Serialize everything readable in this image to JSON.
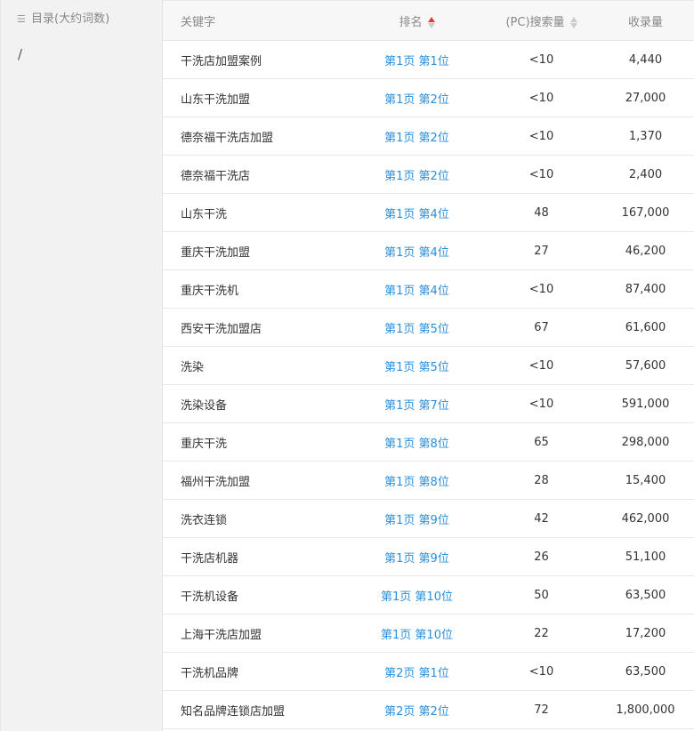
{
  "sidebar": {
    "title": "目录(大约词数)",
    "items": [
      "/"
    ]
  },
  "header": {
    "keyword": "关键字",
    "rank": "排名",
    "search": "(PC)搜索量",
    "indexed": "收录量"
  },
  "colors": {
    "rank_link": "#2a8fdc",
    "sort_active": "#e8352e"
  },
  "rows": [
    {
      "k": "干洗店加盟案例",
      "r": "第1页 第1位",
      "s": "<10",
      "i": "4,440"
    },
    {
      "k": "山东干洗加盟",
      "r": "第1页 第2位",
      "s": "<10",
      "i": "27,000"
    },
    {
      "k": "德奈福干洗店加盟",
      "r": "第1页 第2位",
      "s": "<10",
      "i": "1,370"
    },
    {
      "k": "德奈福干洗店",
      "r": "第1页 第2位",
      "s": "<10",
      "i": "2,400"
    },
    {
      "k": "山东干洗",
      "r": "第1页 第4位",
      "s": "48",
      "i": "167,000"
    },
    {
      "k": "重庆干洗加盟",
      "r": "第1页 第4位",
      "s": "27",
      "i": "46,200"
    },
    {
      "k": "重庆干洗机",
      "r": "第1页 第4位",
      "s": "<10",
      "i": "87,400"
    },
    {
      "k": "西安干洗加盟店",
      "r": "第1页 第5位",
      "s": "67",
      "i": "61,600"
    },
    {
      "k": "洗染",
      "r": "第1页 第5位",
      "s": "<10",
      "i": "57,600"
    },
    {
      "k": "洗染设备",
      "r": "第1页 第7位",
      "s": "<10",
      "i": "591,000"
    },
    {
      "k": "重庆干洗",
      "r": "第1页 第8位",
      "s": "65",
      "i": "298,000"
    },
    {
      "k": "福州干洗加盟",
      "r": "第1页 第8位",
      "s": "28",
      "i": "15,400"
    },
    {
      "k": "洗衣连锁",
      "r": "第1页 第9位",
      "s": "42",
      "i": "462,000"
    },
    {
      "k": "干洗店机器",
      "r": "第1页 第9位",
      "s": "26",
      "i": "51,100"
    },
    {
      "k": "干洗机设备",
      "r": "第1页 第10位",
      "s": "50",
      "i": "63,500"
    },
    {
      "k": "上海干洗店加盟",
      "r": "第1页 第10位",
      "s": "22",
      "i": "17,200"
    },
    {
      "k": "干洗机品牌",
      "r": "第2页 第1位",
      "s": "<10",
      "i": "63,500"
    },
    {
      "k": "知名品牌连锁店加盟",
      "r": "第2页 第2位",
      "s": "72",
      "i": "1,800,000"
    }
  ]
}
